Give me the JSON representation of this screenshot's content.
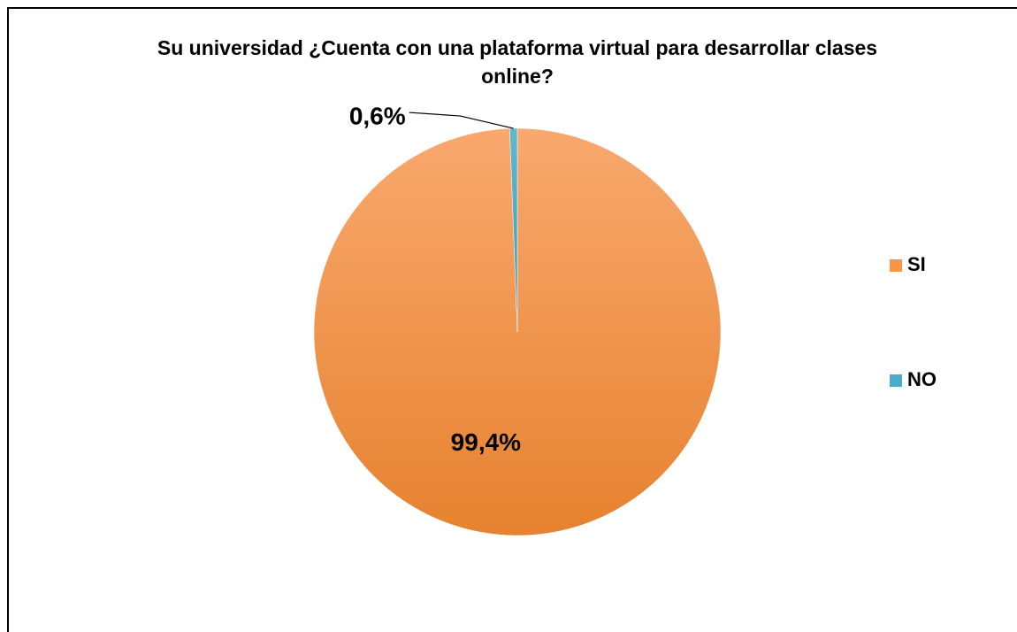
{
  "chart_data": {
    "type": "pie",
    "title": "Su universidad ¿Cuenta con una plataforma virtual para desarrollar clases online?",
    "categories": [
      "SI",
      "NO"
    ],
    "values": [
      99.4,
      0.6
    ],
    "value_labels": [
      "99,4%",
      "0,6%"
    ],
    "colors": [
      "#f79646",
      "#4bacc6"
    ],
    "legend": "right"
  }
}
